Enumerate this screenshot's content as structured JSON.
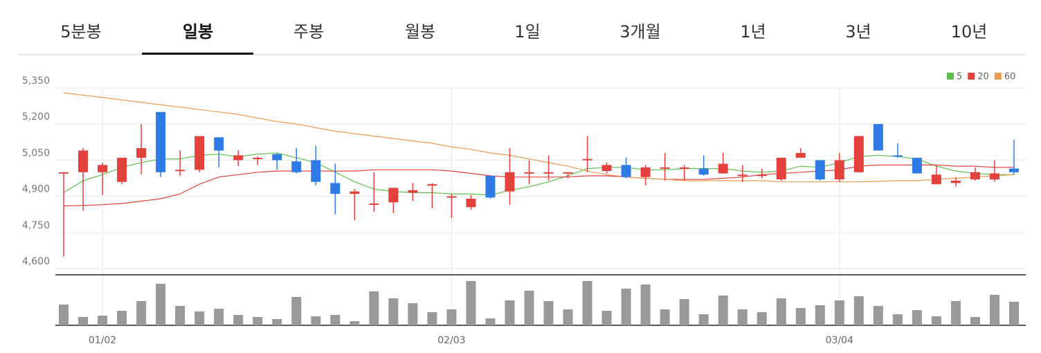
{
  "tabs": {
    "items": [
      "5분봉",
      "일봉",
      "주봉",
      "월봉",
      "1일",
      "3개월",
      "1년",
      "3년",
      "10년"
    ],
    "active": 1
  },
  "chart_data": {
    "type": "candlestick",
    "categories": [
      null,
      null,
      "01/02",
      null,
      null,
      null,
      null,
      null,
      null,
      null,
      null,
      null,
      null,
      null,
      null,
      null,
      null,
      null,
      null,
      null,
      "02/03",
      null,
      null,
      null,
      null,
      null,
      null,
      null,
      null,
      null,
      null,
      null,
      null,
      null,
      null,
      null,
      null,
      null,
      null,
      null,
      "03/04",
      null,
      null,
      null,
      null,
      null,
      null,
      null,
      null,
      null
    ],
    "open": [
      4995,
      5000,
      5000,
      4960,
      5060,
      5250,
      5005,
      5010,
      5145,
      5050,
      5055,
      5075,
      5045,
      5050,
      4955,
      4910,
      4865,
      4875,
      4915,
      4945,
      4895,
      4855,
      4985,
      4920,
      4995,
      4995,
      4995,
      5050,
      5005,
      5030,
      4980,
      5015,
      5015,
      5015,
      4995,
      4985,
      4985,
      4970,
      5060,
      5050,
      4970,
      5000,
      5200,
      5070,
      5060,
      4950,
      4955,
      4970,
      4970,
      5015
    ],
    "high": [
      5000,
      5100,
      5040,
      5060,
      5200,
      5250,
      5090,
      5150,
      5145,
      5090,
      5065,
      5080,
      5100,
      5110,
      5035,
      4930,
      5000,
      4935,
      4955,
      4955,
      4910,
      4905,
      4985,
      5100,
      5050,
      5070,
      5000,
      5150,
      5040,
      5060,
      5030,
      5080,
      5030,
      5070,
      5080,
      5030,
      5015,
      5060,
      5100,
      5050,
      5080,
      5150,
      5200,
      5120,
      5060,
      5030,
      4980,
      5020,
      5050,
      5135
    ],
    "low": [
      4650,
      4840,
      4905,
      4950,
      4990,
      4980,
      4985,
      5000,
      5020,
      5025,
      5030,
      5010,
      4995,
      4945,
      4825,
      4800,
      4835,
      4830,
      4880,
      4850,
      4810,
      4845,
      4890,
      4865,
      4950,
      4965,
      4975,
      5000,
      4995,
      4975,
      4945,
      4965,
      4965,
      4985,
      4995,
      4960,
      4975,
      4965,
      5060,
      4965,
      4960,
      5000,
      5090,
      5060,
      4995,
      4950,
      4940,
      4965,
      4960,
      4990
    ],
    "close": [
      5000,
      5090,
      5030,
      5060,
      5100,
      5000,
      5010,
      5150,
      5090,
      5070,
      5060,
      5050,
      5000,
      4960,
      4910,
      4920,
      4870,
      4935,
      4925,
      4950,
      4900,
      4890,
      4895,
      5000,
      5000,
      5000,
      5000,
      5055,
      5030,
      4980,
      5020,
      5020,
      5020,
      4990,
      5035,
      4990,
      4990,
      5060,
      5080,
      4970,
      5050,
      5150,
      5090,
      5065,
      4995,
      4990,
      4965,
      5000,
      4995,
      5000
    ],
    "up_color": "#e2413c",
    "down_color": "#2f7be6",
    "series": [
      {
        "name": "5",
        "color": "#5cc14a",
        "values": [
          4915,
          4965,
          4990,
          5020,
          5040,
          5055,
          5055,
          5070,
          5075,
          5065,
          5075,
          5080,
          5060,
          5040,
          5000,
          4960,
          4930,
          4920,
          4915,
          4915,
          4910,
          4910,
          4905,
          4925,
          4940,
          4960,
          4985,
          5015,
          5020,
          5020,
          5010,
          5010,
          5015,
          5015,
          5015,
          5005,
          5000,
          5005,
          5025,
          5020,
          5040,
          5065,
          5070,
          5065,
          5055,
          5025,
          5005,
          4995,
          4990,
          4990
        ]
      },
      {
        "name": "20",
        "color": "#e2413c",
        "values": [
          4860,
          4862,
          4865,
          4870,
          4880,
          4890,
          4910,
          4950,
          4980,
          4990,
          5000,
          5005,
          5005,
          5005,
          5005,
          5005,
          5010,
          5010,
          5010,
          5010,
          5005,
          4995,
          4985,
          4980,
          4980,
          4980,
          4980,
          4985,
          4985,
          4980,
          4975,
          4970,
          4970,
          4970,
          4975,
          4980,
          4990,
          4995,
          5000,
          5005,
          5010,
          5025,
          5030,
          5030,
          5030,
          5030,
          5025,
          5025,
          5020,
          5020
        ]
      },
      {
        "name": "60",
        "color": "#ee9a4d",
        "values": [
          5330,
          5320,
          5310,
          5300,
          5290,
          5280,
          5270,
          5260,
          5250,
          5240,
          5225,
          5210,
          5200,
          5185,
          5170,
          5160,
          5150,
          5140,
          5130,
          5120,
          5105,
          5095,
          5080,
          5070,
          5055,
          5040,
          5025,
          5005,
          4990,
          4980,
          4975,
          4970,
          4965,
          4965,
          4965,
          4965,
          4965,
          4960,
          4960,
          4960,
          4960,
          4960,
          4962,
          4965,
          4965,
          4970,
          4975,
          4980,
          4985,
          4990
        ]
      }
    ],
    "volume": {
      "color": "#999999",
      "values": [
        30,
        12,
        14,
        21,
        35,
        60,
        28,
        20,
        24,
        15,
        12,
        9,
        41,
        13,
        15,
        6,
        49,
        39,
        32,
        19,
        23,
        64,
        10,
        36,
        50,
        35,
        23,
        64,
        21,
        53,
        59,
        23,
        38,
        16,
        43,
        23,
        19,
        39,
        25,
        29,
        36,
        42,
        28,
        16,
        22,
        13,
        35,
        12,
        44,
        34
      ]
    },
    "ylim": [
      4600,
      5350
    ],
    "yticks": [
      {
        "value": 4600,
        "label": "4,600"
      },
      {
        "value": 4750,
        "label": "4,750"
      },
      {
        "value": 4900,
        "label": "4,900"
      },
      {
        "value": 5050,
        "label": "5,050"
      },
      {
        "value": 5200,
        "label": "5,200"
      },
      {
        "value": 5350,
        "label": "5,350"
      }
    ],
    "grid": true,
    "legend": "top-right"
  }
}
